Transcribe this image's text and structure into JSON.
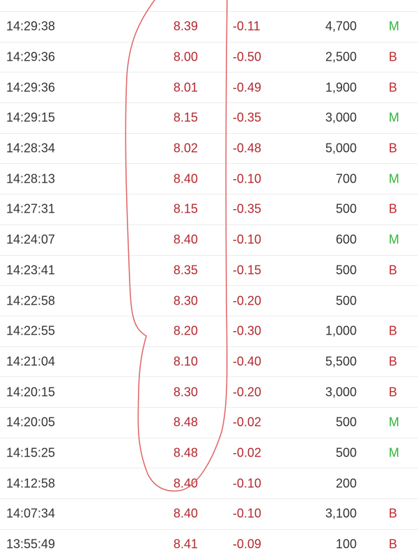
{
  "colors": {
    "price": "#b2282e",
    "buy": "#c0282e",
    "mid": "#2fb536",
    "ink": "#e06a6a"
  },
  "trades": [
    {
      "time": "14:29:38",
      "price": "8.39",
      "change": "-0.11",
      "volume": "4,700",
      "side": "M"
    },
    {
      "time": "14:29:36",
      "price": "8.00",
      "change": "-0.50",
      "volume": "2,500",
      "side": "B"
    },
    {
      "time": "14:29:36",
      "price": "8.01",
      "change": "-0.49",
      "volume": "1,900",
      "side": "B"
    },
    {
      "time": "14:29:15",
      "price": "8.15",
      "change": "-0.35",
      "volume": "3,000",
      "side": "M"
    },
    {
      "time": "14:28:34",
      "price": "8.02",
      "change": "-0.48",
      "volume": "5,000",
      "side": "B"
    },
    {
      "time": "14:28:13",
      "price": "8.40",
      "change": "-0.10",
      "volume": "700",
      "side": "M"
    },
    {
      "time": "14:27:31",
      "price": "8.15",
      "change": "-0.35",
      "volume": "500",
      "side": "B"
    },
    {
      "time": "14:24:07",
      "price": "8.40",
      "change": "-0.10",
      "volume": "600",
      "side": "M"
    },
    {
      "time": "14:23:41",
      "price": "8.35",
      "change": "-0.15",
      "volume": "500",
      "side": "B"
    },
    {
      "time": "14:22:58",
      "price": "8.30",
      "change": "-0.20",
      "volume": "500",
      "side": ""
    },
    {
      "time": "14:22:55",
      "price": "8.20",
      "change": "-0.30",
      "volume": "1,000",
      "side": "B"
    },
    {
      "time": "14:21:04",
      "price": "8.10",
      "change": "-0.40",
      "volume": "5,500",
      "side": "B"
    },
    {
      "time": "14:20:15",
      "price": "8.30",
      "change": "-0.20",
      "volume": "3,000",
      "side": "B"
    },
    {
      "time": "14:20:05",
      "price": "8.48",
      "change": "-0.02",
      "volume": "500",
      "side": "M"
    },
    {
      "time": "14:15:25",
      "price": "8.48",
      "change": "-0.02",
      "volume": "500",
      "side": "M"
    },
    {
      "time": "14:12:58",
      "price": "8.40",
      "change": "-0.10",
      "volume": "200",
      "side": ""
    },
    {
      "time": "14:07:34",
      "price": "8.40",
      "change": "-0.10",
      "volume": "3,100",
      "side": "B"
    },
    {
      "time": "13:55:49",
      "price": "8.41",
      "change": "-0.09",
      "volume": "100",
      "side": "B"
    }
  ]
}
